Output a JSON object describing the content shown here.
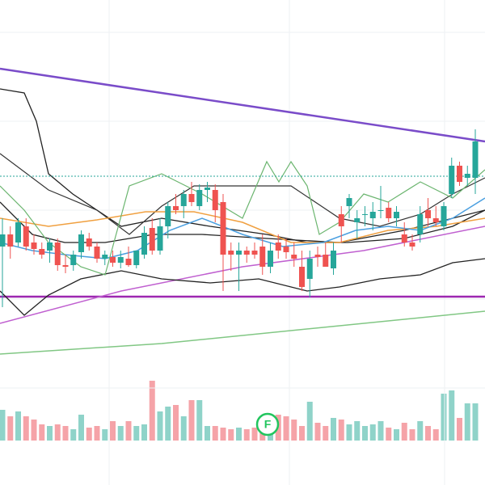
{
  "chart_data": {
    "type": "candlestick",
    "ylim": [
      0,
      600
    ],
    "up_color": "#26a69a",
    "down_color": "#ef5350",
    "volume_up_color": "#8fd3c9",
    "volume_down_color": "#f5a3a8",
    "open": [
      295,
      310,
      300,
      320,
      300,
      292,
      290,
      300,
      272,
      272,
      288,
      305,
      295,
      280,
      282,
      275,
      280,
      272,
      285,
      318,
      290,
      320,
      345,
      345,
      360,
      345,
      365,
      365,
      350,
      290,
      285,
      290,
      290,
      295,
      270,
      300,
      295,
      285,
      270,
      255,
      285,
      285,
      268,
      335,
      345,
      325,
      335,
      330,
      340,
      343,
      330,
      310,
      300,
      310,
      340,
      330,
      320,
      360,
      395,
      380,
      380
    ],
    "high": [
      330,
      320,
      330,
      330,
      310,
      300,
      305,
      305,
      285,
      290,
      315,
      312,
      300,
      290,
      290,
      290,
      295,
      290,
      320,
      330,
      330,
      350,
      360,
      365,
      375,
      372,
      375,
      372,
      360,
      300,
      300,
      295,
      300,
      310,
      300,
      310,
      305,
      300,
      290,
      290,
      295,
      300,
      300,
      345,
      360,
      340,
      345,
      350,
      370,
      350,
      345,
      325,
      310,
      345,
      355,
      345,
      350,
      405,
      400,
      395,
      440
    ],
    "low": [
      220,
      280,
      295,
      290,
      285,
      280,
      275,
      265,
      262,
      265,
      280,
      290,
      275,
      272,
      270,
      268,
      270,
      268,
      280,
      285,
      285,
      305,
      335,
      330,
      345,
      340,
      350,
      325,
      240,
      265,
      240,
      275,
      280,
      260,
      262,
      280,
      280,
      270,
      240,
      232,
      270,
      270,
      260,
      300,
      330,
      305,
      320,
      315,
      330,
      325,
      320,
      295,
      290,
      300,
      320,
      320,
      315,
      355,
      370,
      370,
      360
    ],
    "close": [
      310,
      295,
      325,
      295,
      292,
      285,
      300,
      272,
      270,
      285,
      310,
      295,
      280,
      285,
      275,
      282,
      272,
      290,
      312,
      290,
      320,
      345,
      340,
      360,
      350,
      365,
      368,
      340,
      285,
      285,
      290,
      285,
      285,
      270,
      290,
      290,
      288,
      280,
      245,
      280,
      282,
      270,
      290,
      320,
      355,
      330,
      335,
      338,
      340,
      330,
      338,
      300,
      295,
      335,
      330,
      325,
      345,
      395,
      375,
      385,
      425
    ],
    "volume": [
      38,
      30,
      36,
      30,
      26,
      20,
      18,
      20,
      18,
      14,
      32,
      16,
      18,
      14,
      24,
      18,
      24,
      18,
      20,
      74,
      36,
      42,
      44,
      30,
      50,
      50,
      18,
      18,
      16,
      14,
      16,
      14,
      16,
      18,
      16,
      32,
      30,
      26,
      18,
      48,
      22,
      18,
      28,
      26,
      20,
      24,
      18,
      20,
      24,
      16,
      14,
      22,
      14,
      24,
      18,
      14,
      58,
      62,
      28,
      46,
      46
    ],
    "marker_label": "F"
  }
}
